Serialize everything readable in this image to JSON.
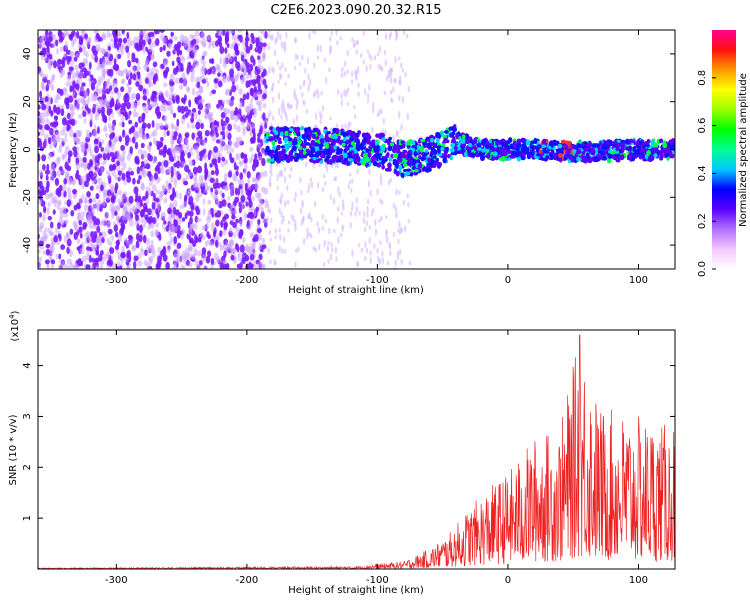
{
  "title": "C2E6.2023.090.20.32.R15",
  "colors": {
    "frame": "#000000",
    "snr_line": "#ee2222",
    "spectrogram_dots": "#7a1aff",
    "colormap": [
      "#ffffff",
      "#f3c6ff",
      "#b070ff",
      "#5a00ff",
      "#0000ff",
      "#00c8ff",
      "#00ff90",
      "#00ff00",
      "#9cff00",
      "#ffff00",
      "#ff9900",
      "#ff1010",
      "#ff0090"
    ]
  },
  "chart_data": [
    {
      "type": "heatmap",
      "title": "",
      "xlabel": "Height of straight line (km)",
      "ylabel": "Frequency (Hz)",
      "xlim": [
        -360,
        128
      ],
      "ylim": [
        -50,
        50
      ],
      "xticks": [
        -300,
        -200,
        -100,
        0,
        100
      ],
      "yticks": [
        -40,
        -20,
        0,
        20,
        40
      ],
      "grid": false,
      "colorbar": {
        "label": "Normalized spectral amplitude",
        "range": [
          0,
          1
        ],
        "ticks": [
          "0.0",
          "0.2",
          "0.4",
          "0.6",
          "0.8"
        ]
      },
      "features": {
        "noise_region_x": [
          -360,
          -185
        ],
        "band_center_freq_by_height": [
          {
            "x": -185,
            "y": 2
          },
          {
            "x": -150,
            "y": 2
          },
          {
            "x": -100,
            "y": 0
          },
          {
            "x": -80,
            "y": -4
          },
          {
            "x": -60,
            "y": -2
          },
          {
            "x": -40,
            "y": 3
          },
          {
            "x": -20,
            "y": 0
          },
          {
            "x": 20,
            "y": 0
          },
          {
            "x": 60,
            "y": -1
          },
          {
            "x": 100,
            "y": 0
          },
          {
            "x": 128,
            "y": 0
          }
        ],
        "peak_amplitude_region_x": [
          20,
          50
        ]
      }
    },
    {
      "type": "line",
      "title": "",
      "xlabel": "Height of straight line (km)",
      "ylabel": "SNR (10 * v/v)",
      "y_multiplier_label": "(x10",
      "y_multiplier_exp": "4",
      "y_multiplier_close": ")",
      "xlim": [
        -360,
        128
      ],
      "ylim": [
        0,
        4.7
      ],
      "xticks": [
        -300,
        -200,
        -100,
        0,
        100
      ],
      "yticks": [
        1,
        2,
        3,
        4
      ],
      "grid": false,
      "envelope": [
        {
          "x": -360,
          "y": 0.02
        },
        {
          "x": -120,
          "y": 0.05
        },
        {
          "x": -100,
          "y": 0.1
        },
        {
          "x": -80,
          "y": 0.15
        },
        {
          "x": -60,
          "y": 0.4
        },
        {
          "x": -45,
          "y": 0.7
        },
        {
          "x": -30,
          "y": 1.2
        },
        {
          "x": -15,
          "y": 1.6
        },
        {
          "x": 0,
          "y": 1.9
        },
        {
          "x": 20,
          "y": 2.6
        },
        {
          "x": 40,
          "y": 2.8
        },
        {
          "x": 55,
          "y": 4.6
        },
        {
          "x": 70,
          "y": 3.2
        },
        {
          "x": 100,
          "y": 3.0
        },
        {
          "x": 128,
          "y": 2.8
        }
      ],
      "peak": {
        "x": 55,
        "y": 4.6
      }
    }
  ]
}
